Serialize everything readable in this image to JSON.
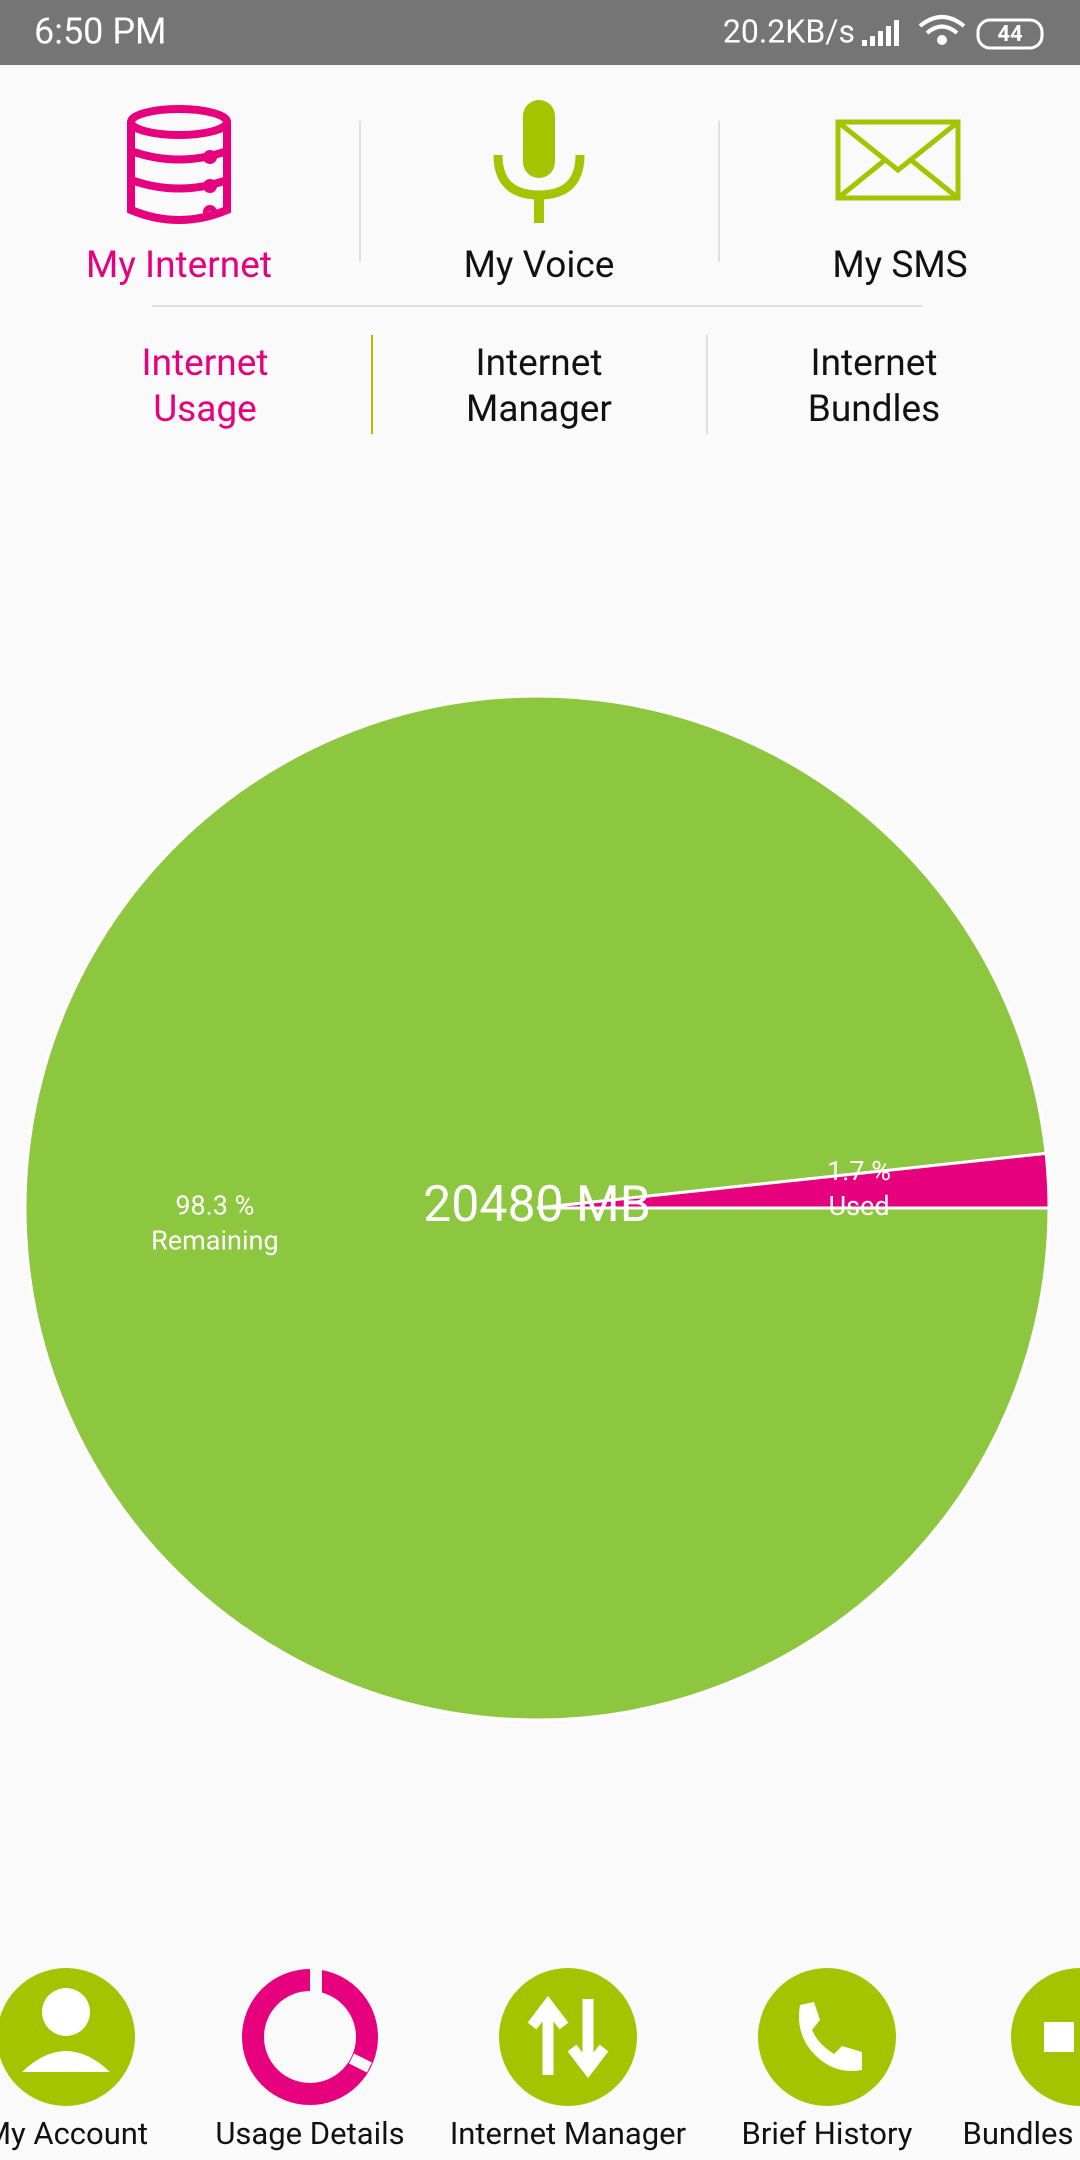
{
  "status_bar": {
    "time": "6:50 PM",
    "speed": "20.2KB/s",
    "battery": "44"
  },
  "tabs": [
    "My Internet",
    "My Voice",
    "My SMS"
  ],
  "sub_tabs": [
    [
      "Internet",
      "Usage"
    ],
    [
      "Internet",
      "Manager"
    ],
    [
      "Internet",
      "Bundles"
    ]
  ],
  "chart_data": {
    "type": "pie",
    "categories": [
      "Remaining",
      "Used"
    ],
    "values": [
      98.3,
      1.7
    ],
    "value_labels": [
      "98.3 %",
      "1.7 %"
    ],
    "colors": [
      "#8dc63f",
      "#e6007e"
    ],
    "center_label": "20480 MB"
  },
  "bottom_nav": [
    "My Account",
    "Usage Details",
    "Internet Manager",
    "Brief History",
    "Bundles"
  ]
}
